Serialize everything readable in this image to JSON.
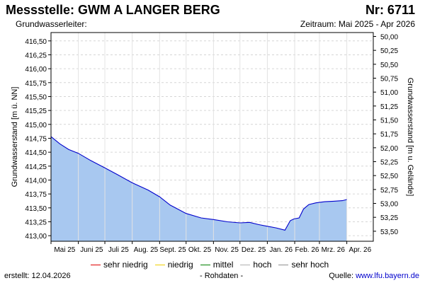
{
  "header": {
    "title": "Messstelle: GWM A LANGER BERG",
    "number": "Nr: 6711",
    "aquifer": "Grundwasserleiter:",
    "period": "Zeitraum: Mai 2025 - Apr 2026"
  },
  "chart_data": {
    "type": "area",
    "ylabel_left": "Grundwasserstand [m ü. NN]",
    "ylabel_right": "Grundwasserstand [m u. Gelände]",
    "ylim_left": [
      412.9,
      416.65
    ],
    "ylim_right": [
      53.68,
      49.93
    ],
    "left_ticks": [
      "416,50",
      "416,25",
      "416,00",
      "415,75",
      "415,50",
      "415,25",
      "415,00",
      "414,75",
      "414,50",
      "414,25",
      "414,00",
      "413,75",
      "413,50",
      "413,25",
      "413,00"
    ],
    "left_tick_values": [
      416.5,
      416.25,
      416.0,
      415.75,
      415.5,
      415.25,
      415.0,
      414.75,
      414.5,
      414.25,
      414.0,
      413.75,
      413.5,
      413.25,
      413.0
    ],
    "right_ticks": [
      "50,00",
      "50,25",
      "50,50",
      "50,75",
      "51,00",
      "51,25",
      "51,50",
      "51,75",
      "52,00",
      "52,25",
      "52,50",
      "52,75",
      "53,00",
      "53,25",
      "53,50"
    ],
    "right_tick_values": [
      50.0,
      50.25,
      50.5,
      50.75,
      51.0,
      51.25,
      51.5,
      51.75,
      52.0,
      52.25,
      52.5,
      52.75,
      53.0,
      53.25,
      53.5
    ],
    "x_labels": [
      "Mai 25",
      "Juni 25",
      "Juli 25",
      "Aug. 25",
      "Sept. 25",
      "Okt. 25",
      "Nov. 25",
      "Dez. 25",
      "Jan. 26",
      "Feb. 26",
      "Mrz. 26",
      "Apr. 26"
    ],
    "x_domain_days": [
      0,
      365
    ],
    "x_label_days": [
      0,
      31,
      61,
      92,
      123,
      153,
      184,
      214,
      245,
      276,
      304,
      335
    ],
    "series": [
      {
        "name": "Rohdaten",
        "x_days": [
          0,
          10,
          20,
          31,
          45,
          61,
          75,
          92,
          110,
          123,
          135,
          153,
          170,
          184,
          200,
          214,
          225,
          235,
          245,
          255,
          265,
          271,
          275,
          281,
          286,
          292,
          300,
          310,
          320,
          330,
          335
        ],
        "values": [
          414.78,
          414.65,
          414.55,
          414.48,
          414.35,
          414.22,
          414.1,
          413.95,
          413.82,
          413.7,
          413.55,
          413.4,
          413.32,
          413.29,
          413.25,
          413.23,
          413.24,
          413.2,
          413.17,
          413.14,
          413.1,
          413.27,
          413.3,
          413.32,
          413.48,
          413.56,
          413.59,
          413.61,
          413.62,
          413.63,
          413.65
        ],
        "color": "#0000cc",
        "fill": "#a8c8f0"
      }
    ]
  },
  "legend": {
    "items": [
      {
        "label": "sehr niedrig",
        "color": "#e00000"
      },
      {
        "label": "niedrig",
        "color": "#f0d000"
      },
      {
        "label": "mittel",
        "color": "#008000"
      },
      {
        "label": "hoch",
        "color": "#b0b0b0"
      },
      {
        "label": "sehr hoch",
        "color": "#909090"
      }
    ]
  },
  "footer": {
    "created": "erstellt:  12.04.2026",
    "raw": "- Rohdaten -",
    "source_prefix": "Quelle: ",
    "source_link": "www.lfu.bayern.de"
  }
}
